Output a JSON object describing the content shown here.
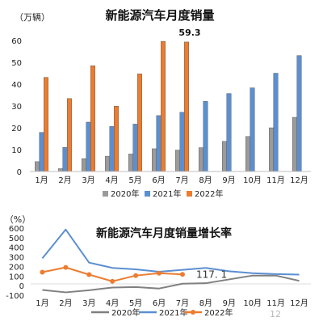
{
  "chart_data": [
    {
      "type": "bar",
      "title": "新能源汽车月度销量",
      "ylabel": "（万辆）",
      "ylim": [
        0,
        60
      ],
      "yticks": [
        0,
        10,
        20,
        30,
        40,
        50,
        60
      ],
      "categories": [
        "1月",
        "2月",
        "3月",
        "4月",
        "5月",
        "6月",
        "7月",
        "8月",
        "9月",
        "10月",
        "11月",
        "12月"
      ],
      "series": [
        {
          "name": "2020年",
          "color": "#9b9b9b",
          "values": [
            4.5,
            1.3,
            5.9,
            7.0,
            8.0,
            10.4,
            9.8,
            10.9,
            13.8,
            16.0,
            20.0,
            24.8
          ]
        },
        {
          "name": "2021年",
          "color": "#5b8fd0",
          "values": [
            17.9,
            11.0,
            22.6,
            20.6,
            21.7,
            25.6,
            27.1,
            32.1,
            35.7,
            38.3,
            45.0,
            53.1
          ]
        },
        {
          "name": "2022年",
          "color": "#ec7c30",
          "values": [
            43.1,
            33.4,
            48.4,
            29.9,
            44.7,
            59.6,
            59.3,
            null,
            null,
            null,
            null,
            null
          ]
        }
      ],
      "annotations": [
        {
          "text": "59.3",
          "category": "7月",
          "series": "2022年"
        }
      ],
      "legend": "bottom",
      "grid": false
    },
    {
      "type": "line",
      "title": "新能源汽车月度销量增长率",
      "ylabel": "（%）",
      "ylim": [
        -100,
        600
      ],
      "yticks": [
        -100,
        0,
        100,
        200,
        300,
        400,
        500,
        600
      ],
      "categories": [
        "1月",
        "2月",
        "3月",
        "4月",
        "5月",
        "6月",
        "7月",
        "8月",
        "9月",
        "10月",
        "11月",
        "12月"
      ],
      "series": [
        {
          "name": "2020年",
          "color": "#808080",
          "marker": false,
          "values": [
            -45,
            -70,
            -48,
            -20,
            -15,
            -30,
            20,
            25,
            65,
            105,
            105,
            50
          ]
        },
        {
          "name": "2021年",
          "color": "#5b8fd0",
          "marker": false,
          "values": [
            285,
            585,
            240,
            185,
            170,
            145,
            165,
            185,
            150,
            130,
            120,
            115
          ]
        },
        {
          "name": "2022年",
          "color": "#ec7c30",
          "marker": true,
          "values": [
            140,
            190,
            115,
            45,
            105,
            130,
            117.1,
            null,
            null,
            null,
            null,
            null
          ]
        }
      ],
      "annotations": [
        {
          "text": "117. 1",
          "category": "7月",
          "series": "2022年"
        }
      ],
      "legend": "bottom",
      "grid": false
    }
  ],
  "page_number": "12"
}
